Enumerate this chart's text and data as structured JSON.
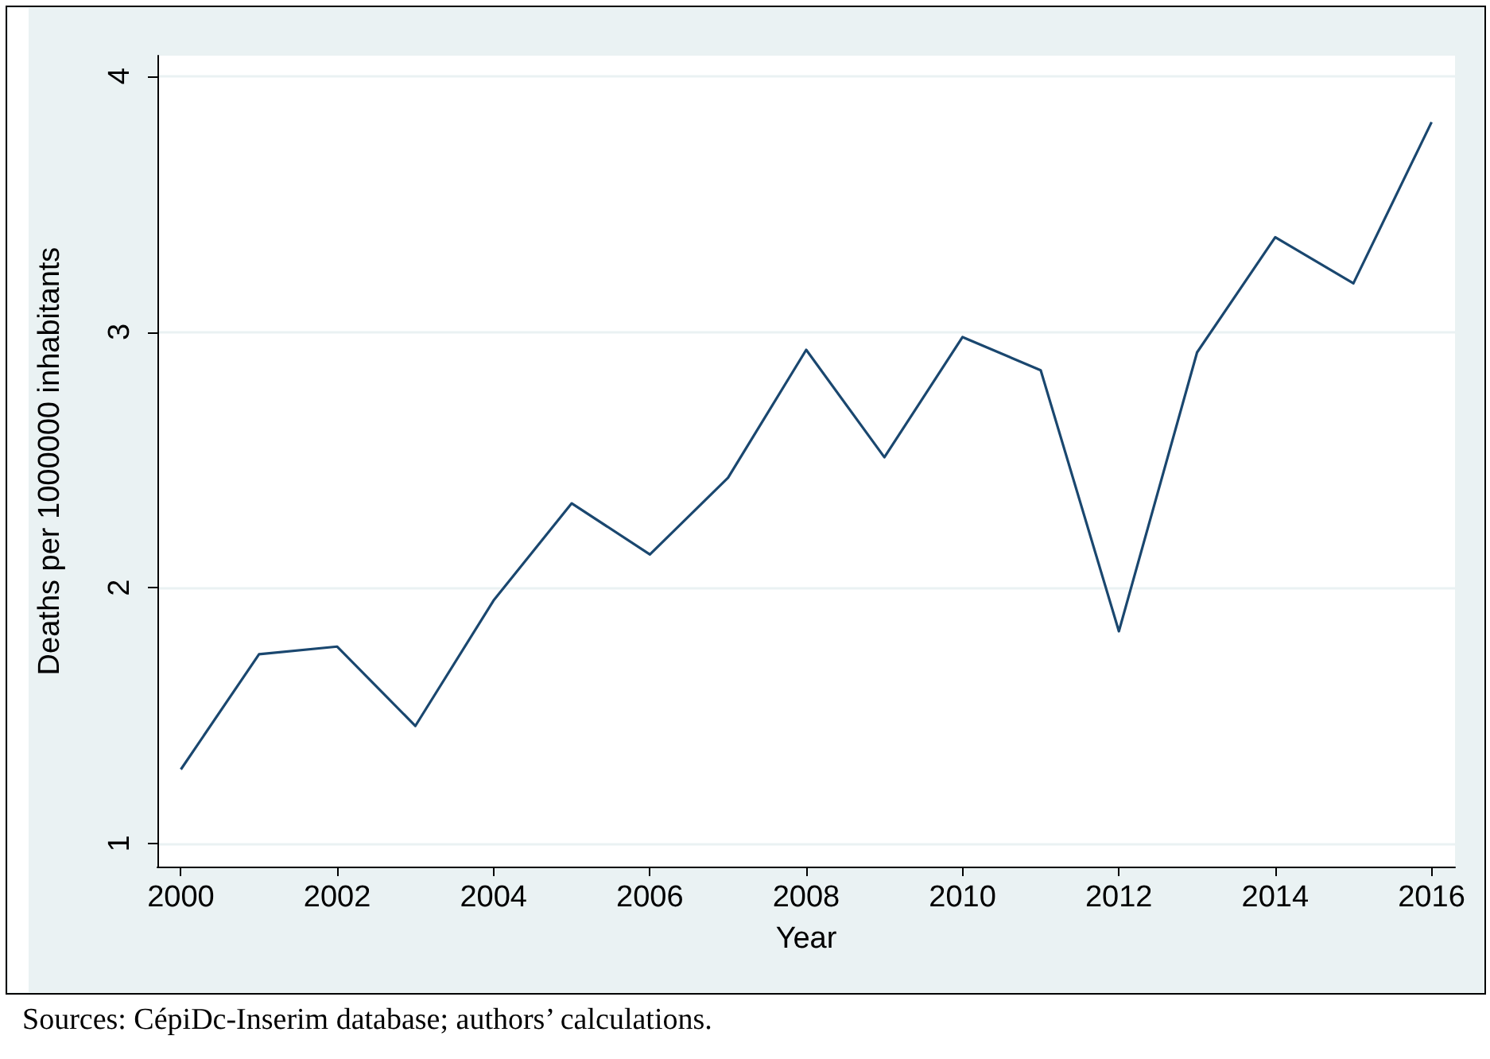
{
  "chart_data": {
    "type": "line",
    "xlabel": "Year",
    "ylabel": "Deaths per 1000000 inhabitants",
    "x": [
      2000,
      2001,
      2002,
      2003,
      2004,
      2005,
      2006,
      2007,
      2008,
      2009,
      2010,
      2011,
      2012,
      2013,
      2014,
      2015,
      2016
    ],
    "series": [
      {
        "color": "#1a476f",
        "values": [
          1.29,
          1.74,
          1.77,
          1.46,
          1.95,
          2.33,
          2.13,
          2.43,
          2.93,
          2.51,
          2.98,
          2.85,
          1.83,
          2.92,
          3.37,
          3.19,
          3.82
        ]
      }
    ],
    "xlim": [
      1999.7,
      2016.3
    ],
    "xticks": [
      2000,
      2002,
      2004,
      2006,
      2008,
      2010,
      2012,
      2014,
      2016
    ],
    "ylim": [
      0.91,
      4.08
    ],
    "yticks": [
      1,
      2,
      3,
      4
    ],
    "grid": "y",
    "marker": "none",
    "line_style": "solid",
    "annotations": [
      "Sources: CépiDc-Inserim database; authors’ calculations."
    ]
  }
}
